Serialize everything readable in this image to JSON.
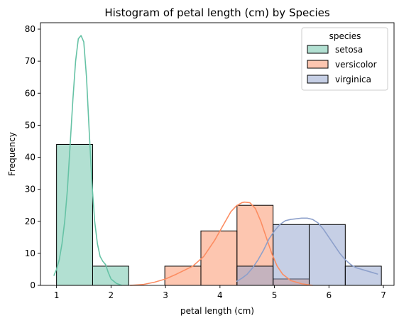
{
  "chart_data": {
    "type": "histogram",
    "title": "Histogram of petal length (cm) by Species",
    "xlabel": "petal length (cm)",
    "ylabel": "Frequency",
    "xlim": [
      0.705,
      7.195
    ],
    "ylim": [
      0,
      82
    ],
    "xticks": [
      1,
      2,
      3,
      4,
      5,
      6,
      7
    ],
    "yticks": [
      0,
      10,
      20,
      30,
      40,
      50,
      60,
      70,
      80
    ],
    "bin_edges": [
      1.0,
      1.6625,
      2.325,
      2.9875,
      3.65,
      4.3125,
      4.975,
      5.6375,
      6.3,
      6.9625
    ],
    "legend": {
      "title": "species",
      "position": "upper right"
    },
    "series": [
      {
        "name": "setosa",
        "color": "#66c2a5",
        "counts": [
          44,
          6,
          0,
          0,
          0,
          0,
          0,
          0,
          0
        ],
        "kde": [
          [
            0.95,
            3
          ],
          [
            1.0,
            5
          ],
          [
            1.05,
            8
          ],
          [
            1.1,
            13
          ],
          [
            1.15,
            20
          ],
          [
            1.2,
            30
          ],
          [
            1.25,
            44
          ],
          [
            1.3,
            58
          ],
          [
            1.35,
            70
          ],
          [
            1.4,
            77
          ],
          [
            1.45,
            78
          ],
          [
            1.5,
            76
          ],
          [
            1.55,
            65
          ],
          [
            1.6,
            48
          ],
          [
            1.65,
            32
          ],
          [
            1.7,
            20
          ],
          [
            1.75,
            13
          ],
          [
            1.8,
            9
          ],
          [
            1.85,
            7.5
          ],
          [
            1.9,
            6.5
          ],
          [
            1.95,
            4
          ],
          [
            2.0,
            2
          ],
          [
            2.1,
            0.6
          ],
          [
            2.2,
            0
          ]
        ]
      },
      {
        "name": "versicolor",
        "color": "#fc8d62",
        "counts": [
          0,
          0,
          0,
          6,
          17,
          25,
          2,
          0,
          0
        ],
        "kde": [
          [
            2.35,
            0
          ],
          [
            2.6,
            0.3
          ],
          [
            2.8,
            1
          ],
          [
            3.0,
            2
          ],
          [
            3.2,
            3.5
          ],
          [
            3.5,
            6
          ],
          [
            3.7,
            9
          ],
          [
            3.9,
            14
          ],
          [
            4.0,
            17
          ],
          [
            4.1,
            20
          ],
          [
            4.2,
            23
          ],
          [
            4.3,
            24.8
          ],
          [
            4.4,
            25.8
          ],
          [
            4.45,
            26
          ],
          [
            4.55,
            25.8
          ],
          [
            4.65,
            24
          ],
          [
            4.75,
            20
          ],
          [
            4.85,
            15
          ],
          [
            4.95,
            10
          ],
          [
            5.05,
            6
          ],
          [
            5.15,
            3.5
          ],
          [
            5.3,
            1.5
          ],
          [
            5.5,
            0.5
          ],
          [
            5.7,
            0
          ]
        ]
      },
      {
        "name": "virginica",
        "color": "#8da0cb",
        "counts": [
          0,
          0,
          0,
          0,
          0,
          6,
          19,
          19,
          6
        ],
        "kde": [
          [
            4.3,
            1.2
          ],
          [
            4.4,
            2.2
          ],
          [
            4.5,
            3.5
          ],
          [
            4.6,
            5.5
          ],
          [
            4.7,
            8
          ],
          [
            4.8,
            11
          ],
          [
            4.9,
            14.5
          ],
          [
            5.0,
            17
          ],
          [
            5.1,
            19
          ],
          [
            5.2,
            20.2
          ],
          [
            5.3,
            20.6
          ],
          [
            5.4,
            20.8
          ],
          [
            5.5,
            21
          ],
          [
            5.6,
            21
          ],
          [
            5.7,
            20.6
          ],
          [
            5.8,
            19.5
          ],
          [
            5.9,
            17.5
          ],
          [
            6.0,
            15
          ],
          [
            6.1,
            12.5
          ],
          [
            6.2,
            10
          ],
          [
            6.3,
            8
          ],
          [
            6.4,
            6.5
          ],
          [
            6.5,
            5.5
          ],
          [
            6.6,
            5
          ],
          [
            6.7,
            4.5
          ],
          [
            6.8,
            4
          ],
          [
            6.9,
            3.5
          ]
        ]
      }
    ]
  }
}
